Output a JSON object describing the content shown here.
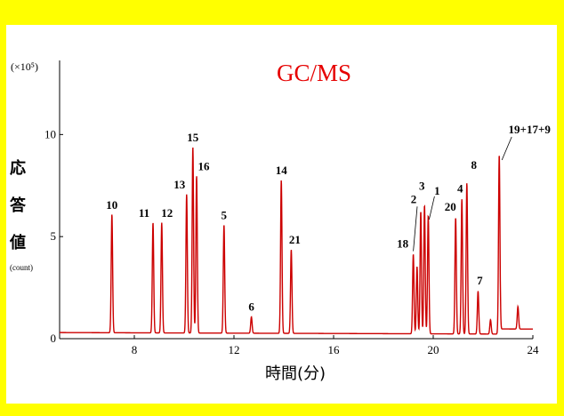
{
  "chart_data": {
    "type": "line",
    "title": "GC/MS",
    "title_color": "#e60000",
    "line_color": "#cc0000",
    "background_outer": "#ffff00",
    "xlabel": "時間(分)",
    "ylabel_chars": [
      "応",
      "答",
      "値"
    ],
    "ylabel_unit": "(count)",
    "y_multiplier": "(×10⁵)",
    "xlim": [
      5,
      24
    ],
    "ylim": [
      0,
      14.5
    ],
    "x_ticks": [
      8,
      12,
      16,
      20,
      24
    ],
    "x_tick_labels": [
      "8",
      "12",
      "16",
      "20",
      "24"
    ],
    "y_ticks": [
      0,
      5,
      10
    ],
    "y_tick_labels": [
      "0",
      "5",
      "10"
    ],
    "baseline": 0.3,
    "peaks": [
      {
        "x": 7.1,
        "y": 6.1,
        "label": "10"
      },
      {
        "x": 8.75,
        "y": 5.7,
        "label": "11"
      },
      {
        "x": 9.1,
        "y": 5.7,
        "label": "12"
      },
      {
        "x": 10.1,
        "y": 7.1,
        "label": "13"
      },
      {
        "x": 10.35,
        "y": 9.4,
        "label": "15"
      },
      {
        "x": 10.5,
        "y": 8.0,
        "label": "16"
      },
      {
        "x": 11.6,
        "y": 5.6,
        "label": "5"
      },
      {
        "x": 12.7,
        "y": 1.1,
        "label": "6"
      },
      {
        "x": 13.9,
        "y": 7.8,
        "label": "14"
      },
      {
        "x": 14.3,
        "y": 4.4,
        "label": "21"
      },
      {
        "x": 19.2,
        "y": 4.2,
        "label": "18"
      },
      {
        "x": 19.5,
        "y": 6.3,
        "label": "2"
      },
      {
        "x": 19.65,
        "y": 6.6,
        "label": "3"
      },
      {
        "x": 19.8,
        "y": 6.1,
        "label": "1"
      },
      {
        "x": 20.9,
        "y": 6.0,
        "label": "20"
      },
      {
        "x": 21.15,
        "y": 6.9,
        "label": "4"
      },
      {
        "x": 21.35,
        "y": 7.7,
        "label": "8"
      },
      {
        "x": 21.8,
        "y": 2.4,
        "label": "7"
      },
      {
        "x": 22.65,
        "y": 9.1,
        "label": "19+17+9"
      }
    ],
    "minor_peaks": [
      {
        "x": 19.35,
        "y": 3.6
      },
      {
        "x": 22.3,
        "y": 1.0
      },
      {
        "x": 23.4,
        "y": 1.4
      }
    ]
  }
}
